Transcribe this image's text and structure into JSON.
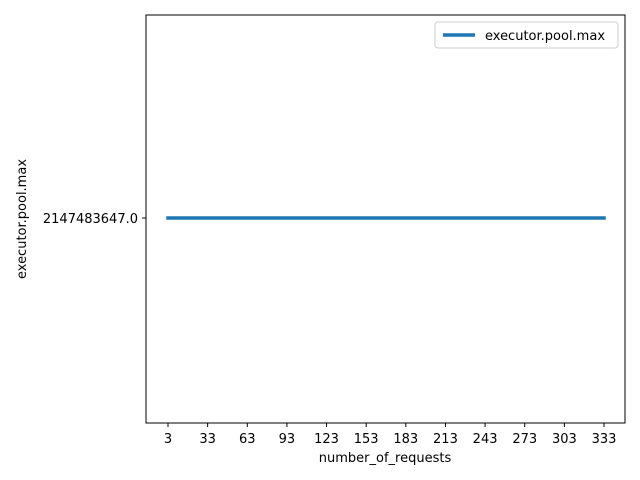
{
  "chart_data": {
    "type": "line",
    "title": "",
    "xlabel": "number_of_requests",
    "ylabel": "executor.pool.max",
    "x": [
      3,
      33,
      63,
      93,
      123,
      153,
      183,
      213,
      243,
      273,
      303,
      333
    ],
    "x_ticks": [
      "3",
      "33",
      "63",
      "93",
      "123",
      "153",
      "183",
      "213",
      "243",
      "273",
      "303",
      "333"
    ],
    "y_ticks": [
      "2147483647.0"
    ],
    "series": [
      {
        "name": "executor.pool.max",
        "color": "#1f77b4",
        "values": [
          2147483647.0,
          2147483647.0,
          2147483647.0,
          2147483647.0,
          2147483647.0,
          2147483647.0,
          2147483647.0,
          2147483647.0,
          2147483647.0,
          2147483647.0,
          2147483647.0,
          2147483647.0
        ]
      }
    ],
    "legend": {
      "position": "upper right",
      "entries": [
        "executor.pool.max"
      ]
    },
    "grid": false
  }
}
